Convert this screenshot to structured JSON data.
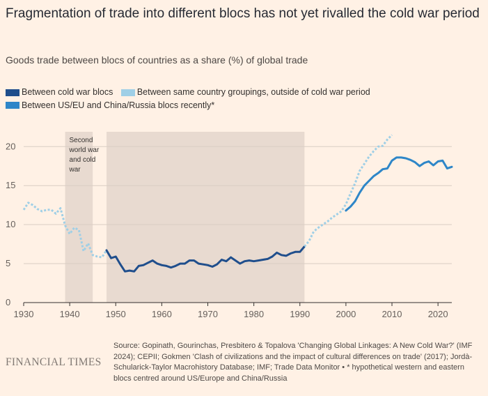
{
  "header": {
    "title": "Fragmentation of trade into different blocs has not yet rivalled the cold war period",
    "subtitle": "Goods trade between blocs of countries as a share (%) of global trade"
  },
  "legend": [
    {
      "label": "Between cold war blocs",
      "color": "#1f4e8c"
    },
    {
      "label": "Between same country groupings, outside of cold war period",
      "color": "#9fcfe6"
    },
    {
      "label": "Between US/EU and China/Russia blocs recently*",
      "color": "#2e86c8"
    }
  ],
  "footer": {
    "logo": "FINANCIAL TIMES",
    "source": "Source: Gopinath, Gourinchas, Presbitero & Topalova 'Changing Global Linkages: A New Cold War?' (IMF 2024); CEPII; Gokmen 'Clash of civilizations and the impact of cultural differences on trade' (2017); Jordà-Schularick-Taylor Macrohistory Database; IMF; Trade Data Monitor • * hypothetical western and eastern blocs centred around US/Europe and China/Russia"
  },
  "chart_data": {
    "type": "line",
    "xlim": [
      1930,
      2023
    ],
    "ylim": [
      0,
      22
    ],
    "x_ticks": [
      1930,
      1940,
      1950,
      1960,
      1970,
      1980,
      1990,
      2000,
      2010,
      2020
    ],
    "y_ticks": [
      0,
      5,
      10,
      15,
      20
    ],
    "grid": true,
    "shaded_periods": [
      {
        "start": 1939,
        "end": 1945,
        "label": "Second world war and cold war",
        "label_lines": [
          "Second",
          "world war",
          "and cold",
          "war"
        ]
      },
      {
        "start": 1948,
        "end": 1991,
        "label": ""
      }
    ],
    "series": [
      {
        "name": "Between same country groupings, outside of cold war period",
        "color": "#9fcfe6",
        "dashed": true,
        "points": [
          [
            1930,
            11.9
          ],
          [
            1931,
            12.8
          ],
          [
            1932,
            12.5
          ],
          [
            1933,
            12.0
          ],
          [
            1934,
            11.7
          ],
          [
            1935,
            11.9
          ],
          [
            1936,
            11.9
          ],
          [
            1937,
            11.4
          ],
          [
            1938,
            12.1
          ],
          [
            1939,
            9.9
          ],
          [
            1940,
            8.8
          ],
          [
            1941,
            9.6
          ],
          [
            1942,
            9.3
          ],
          [
            1943,
            6.6
          ],
          [
            1944,
            7.6
          ],
          [
            1945,
            6.1
          ],
          [
            1946,
            5.9
          ],
          [
            1947,
            5.8
          ],
          [
            1948,
            6.7
          ]
        ]
      },
      {
        "name": "Between cold war blocs",
        "color": "#1f4e8c",
        "dashed": false,
        "points": [
          [
            1948,
            6.7
          ],
          [
            1949,
            5.7
          ],
          [
            1950,
            5.9
          ],
          [
            1951,
            4.9
          ],
          [
            1952,
            4.0
          ],
          [
            1953,
            4.1
          ],
          [
            1954,
            4.0
          ],
          [
            1955,
            4.7
          ],
          [
            1956,
            4.8
          ],
          [
            1957,
            5.1
          ],
          [
            1958,
            5.4
          ],
          [
            1959,
            5.0
          ],
          [
            1960,
            4.8
          ],
          [
            1961,
            4.7
          ],
          [
            1962,
            4.5
          ],
          [
            1963,
            4.7
          ],
          [
            1964,
            5.0
          ],
          [
            1965,
            5.0
          ],
          [
            1966,
            5.4
          ],
          [
            1967,
            5.4
          ],
          [
            1968,
            5.0
          ],
          [
            1969,
            4.9
          ],
          [
            1970,
            4.8
          ],
          [
            1971,
            4.6
          ],
          [
            1972,
            4.9
          ],
          [
            1973,
            5.5
          ],
          [
            1974,
            5.3
          ],
          [
            1975,
            5.8
          ],
          [
            1976,
            5.4
          ],
          [
            1977,
            5.0
          ],
          [
            1978,
            5.3
          ],
          [
            1979,
            5.4
          ],
          [
            1980,
            5.3
          ],
          [
            1981,
            5.4
          ],
          [
            1982,
            5.5
          ],
          [
            1983,
            5.6
          ],
          [
            1984,
            5.9
          ],
          [
            1985,
            6.4
          ],
          [
            1986,
            6.1
          ],
          [
            1987,
            6.0
          ],
          [
            1988,
            6.3
          ],
          [
            1989,
            6.5
          ],
          [
            1990,
            6.5
          ],
          [
            1991,
            7.2
          ]
        ]
      },
      {
        "name": "Between same country groupings, outside of cold war period",
        "color": "#9fcfe6",
        "dashed": true,
        "points": [
          [
            1991,
            7.2
          ],
          [
            1992,
            7.9
          ],
          [
            1993,
            9.1
          ],
          [
            1994,
            9.6
          ],
          [
            1995,
            10.0
          ],
          [
            1996,
            10.4
          ],
          [
            1997,
            10.9
          ],
          [
            1998,
            11.3
          ],
          [
            1999,
            11.7
          ],
          [
            2000,
            12.6
          ],
          [
            2001,
            14.0
          ],
          [
            2002,
            15.3
          ],
          [
            2003,
            16.9
          ],
          [
            2004,
            17.8
          ],
          [
            2005,
            18.7
          ],
          [
            2006,
            19.4
          ],
          [
            2007,
            20.0
          ],
          [
            2008,
            20.1
          ],
          [
            2009,
            20.9
          ],
          [
            2010,
            21.5
          ]
        ]
      },
      {
        "name": "Between US/EU and China/Russia blocs recently*",
        "color": "#2e86c8",
        "dashed": false,
        "points": [
          [
            2000,
            11.8
          ],
          [
            2001,
            12.3
          ],
          [
            2002,
            13.0
          ],
          [
            2003,
            14.1
          ],
          [
            2004,
            15.0
          ],
          [
            2005,
            15.6
          ],
          [
            2006,
            16.2
          ],
          [
            2007,
            16.6
          ],
          [
            2008,
            17.1
          ],
          [
            2009,
            17.2
          ],
          [
            2010,
            18.2
          ],
          [
            2011,
            18.6
          ],
          [
            2012,
            18.6
          ],
          [
            2013,
            18.5
          ],
          [
            2014,
            18.3
          ],
          [
            2015,
            18.0
          ],
          [
            2016,
            17.5
          ],
          [
            2017,
            17.9
          ],
          [
            2018,
            18.1
          ],
          [
            2019,
            17.6
          ],
          [
            2020,
            18.1
          ],
          [
            2021,
            18.2
          ],
          [
            2022,
            17.2
          ],
          [
            2023,
            17.4
          ]
        ]
      }
    ]
  }
}
